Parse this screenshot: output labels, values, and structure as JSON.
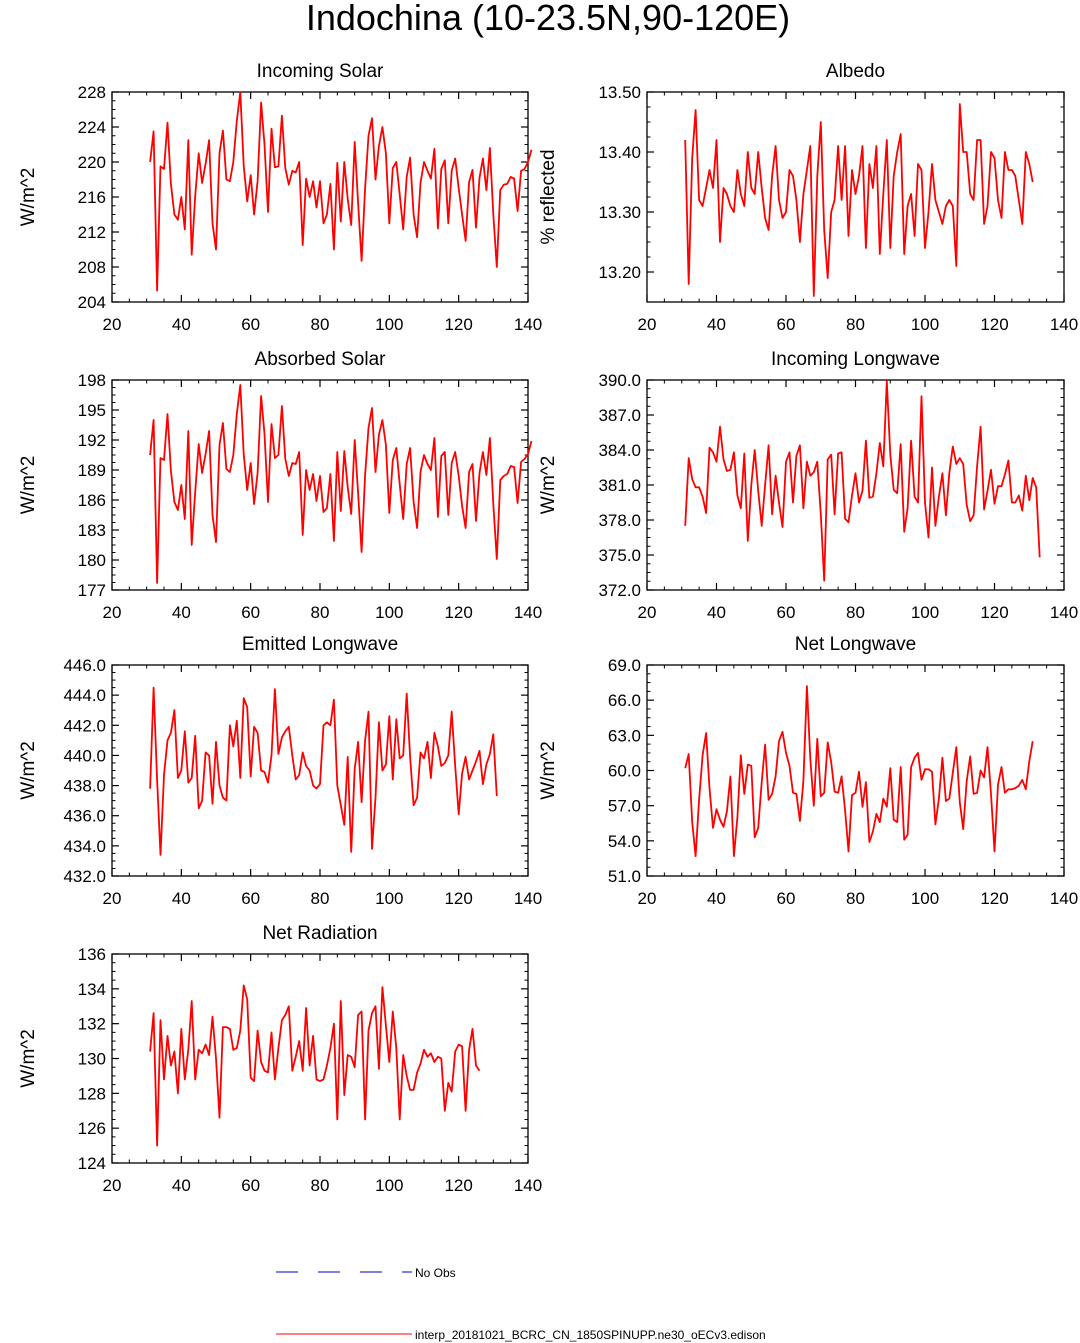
{
  "figure": {
    "title": "Indochina (10-23.5N,90-120E)",
    "legend": [
      {
        "label": "No Obs",
        "color": "#0000cc",
        "dashed": true
      },
      {
        "label": "interp_20181021_BCRC_CN_1850SPINUPP.ne30_oECv3.edison",
        "color": "#ff0000",
        "dashed": false
      }
    ]
  },
  "chart_data": [
    {
      "type": "line",
      "title": "Incoming Solar",
      "ylabel": "W/m^2",
      "xlim": [
        20,
        140
      ],
      "ylim": [
        204,
        228
      ],
      "xticks": [
        20,
        40,
        60,
        80,
        100,
        120,
        140
      ],
      "yticks": [
        204,
        208,
        212,
        216,
        220,
        224,
        228
      ],
      "ytick_labels": [
        "204",
        "208",
        "212",
        "216",
        "220",
        "224",
        "228"
      ],
      "x_start": 31,
      "series": [
        {
          "name": "interp_20181021_BCRC_CN_1850SPINUPP.ne30_oECv3.edison",
          "color": "#ff0000",
          "values": [
            220.0,
            223.5,
            205.3,
            219.5,
            219.2,
            224.5,
            217.5,
            214.0,
            213.4,
            216.0,
            212.3,
            222.5,
            209.4,
            216.1,
            221.0,
            217.6,
            219.8,
            222.5,
            213.0,
            210.0,
            221.0,
            223.6,
            218.0,
            217.8,
            220.0,
            224.7,
            228.0,
            219.6,
            215.5,
            218.5,
            214.0,
            217.8,
            226.8,
            222.0,
            214.3,
            223.8,
            219.4,
            219.5,
            225.3,
            219.3,
            217.4,
            219.0,
            218.8,
            220.0,
            210.5,
            218.1,
            216.0,
            217.8,
            214.8,
            217.8,
            213.0,
            214.0,
            217.5,
            210.0,
            219.9,
            213.2,
            220.0,
            215.8,
            212.8,
            222.3,
            215.3,
            208.7,
            217.0,
            223.0,
            225.0,
            218.0,
            221.8,
            224.0,
            221.0,
            213.0,
            219.3,
            220.0,
            216.3,
            212.3,
            218.3,
            220.5,
            214.0,
            211.4,
            217.6,
            220.0,
            219.0,
            218.1,
            221.5,
            212.4,
            219.2,
            220.2,
            213.0,
            219.0,
            220.4,
            217.0,
            214.0,
            211.0,
            217.7,
            219.1,
            212.5,
            218.2,
            220.4,
            216.8,
            221.6,
            214.0,
            208.0,
            216.8,
            217.4,
            217.5,
            218.3,
            218.1,
            214.4,
            219.0,
            219.2,
            220.0,
            221.4
          ]
        }
      ]
    },
    {
      "type": "line",
      "title": "Albedo",
      "ylabel": "% reflected",
      "xlim": [
        20,
        140
      ],
      "ylim": [
        13.15,
        13.5
      ],
      "xticks": [
        20,
        40,
        60,
        80,
        100,
        120,
        140
      ],
      "yticks": [
        13.2,
        13.3,
        13.4,
        13.5
      ],
      "ytick_labels": [
        "13.20",
        "13.30",
        "13.40",
        "13.50"
      ],
      "x_start": 31,
      "series": [
        {
          "name": "interp_20181021_BCRC_CN_1850SPINUPP.ne30_oECv3.edison",
          "color": "#ff0000",
          "values": [
            13.42,
            13.18,
            13.39,
            13.47,
            13.32,
            13.31,
            13.34,
            13.37,
            13.34,
            13.42,
            13.25,
            13.34,
            13.33,
            13.31,
            13.3,
            13.37,
            13.33,
            13.31,
            13.4,
            13.34,
            13.33,
            13.4,
            13.34,
            13.29,
            13.27,
            13.36,
            13.41,
            13.32,
            13.29,
            13.3,
            13.37,
            13.36,
            13.32,
            13.25,
            13.33,
            13.37,
            13.41,
            13.16,
            13.36,
            13.45,
            13.27,
            13.19,
            13.3,
            13.32,
            13.41,
            13.32,
            13.41,
            13.26,
            13.37,
            13.33,
            13.36,
            13.41,
            13.24,
            13.38,
            13.34,
            13.41,
            13.23,
            13.33,
            13.42,
            13.24,
            13.36,
            13.4,
            13.43,
            13.23,
            13.31,
            13.33,
            13.26,
            13.38,
            13.37,
            13.24,
            13.3,
            13.38,
            13.32,
            13.3,
            13.28,
            13.31,
            13.32,
            13.31,
            13.21,
            13.48,
            13.4,
            13.4,
            13.33,
            13.32,
            13.42,
            13.42,
            13.28,
            13.31,
            13.4,
            13.39,
            13.32,
            13.29,
            13.4,
            13.37,
            13.37,
            13.36,
            13.32,
            13.28,
            13.4,
            13.38,
            13.35
          ]
        }
      ]
    },
    {
      "type": "line",
      "title": "Absorbed Solar",
      "ylabel": "W/m^2",
      "xlim": [
        20,
        140
      ],
      "ylim": [
        177,
        198
      ],
      "xticks": [
        20,
        40,
        60,
        80,
        100,
        120,
        140
      ],
      "yticks": [
        177,
        180,
        183,
        186,
        189,
        192,
        195,
        198
      ],
      "ytick_labels": [
        "177",
        "180",
        "183",
        "186",
        "189",
        "192",
        "195",
        "198"
      ],
      "x_start": 31,
      "series": [
        {
          "name": "interp_20181021_BCRC_CN_1850SPINUPP.ne30_oECv3.edison",
          "color": "#ff0000",
          "values": [
            190.5,
            194.0,
            177.7,
            190.2,
            190.0,
            194.6,
            188.9,
            185.8,
            185.0,
            187.5,
            184.1,
            192.9,
            181.5,
            186.8,
            191.6,
            188.7,
            190.6,
            192.9,
            184.5,
            181.8,
            191.5,
            193.7,
            189.1,
            188.8,
            190.5,
            194.6,
            197.5,
            190.6,
            187.0,
            189.7,
            185.6,
            188.7,
            196.4,
            192.6,
            185.8,
            193.6,
            190.2,
            190.5,
            195.4,
            190.1,
            188.4,
            189.7,
            189.6,
            190.8,
            182.5,
            189.0,
            187.0,
            188.6,
            185.9,
            188.4,
            184.8,
            185.2,
            188.6,
            181.9,
            190.8,
            184.9,
            190.9,
            187.3,
            184.6,
            192.0,
            186.7,
            180.8,
            188.5,
            193.2,
            195.2,
            188.8,
            192.5,
            194.0,
            191.5,
            184.7,
            190.0,
            191.2,
            187.6,
            184.1,
            189.6,
            191.2,
            185.8,
            183.2,
            188.8,
            190.5,
            189.6,
            189.0,
            192.2,
            184.3,
            190.4,
            190.8,
            184.5,
            189.7,
            190.8,
            188.4,
            185.4,
            183.2,
            188.8,
            189.6,
            183.9,
            188.7,
            190.8,
            188.5,
            192.2,
            185.6,
            180.1,
            188.0,
            188.4,
            188.6,
            189.4,
            189.3,
            185.7,
            189.8,
            190.1,
            190.6,
            191.9
          ]
        }
      ]
    },
    {
      "type": "line",
      "title": "Incoming Longwave",
      "ylabel": "W/m^2",
      "xlim": [
        20,
        140
      ],
      "ylim": [
        372,
        390
      ],
      "xticks": [
        20,
        40,
        60,
        80,
        100,
        120,
        140
      ],
      "yticks": [
        372,
        375,
        378,
        381,
        384,
        387,
        390
      ],
      "ytick_labels": [
        "372.0",
        "375.0",
        "378.0",
        "381.0",
        "384.0",
        "387.0",
        "390.0"
      ],
      "x_start": 31,
      "series": [
        {
          "name": "interp_20181021_BCRC_CN_1850SPINUPP.ne30_oECv3.edison",
          "color": "#ff0000",
          "values": [
            377.5,
            383.3,
            381.5,
            380.8,
            380.8,
            380.0,
            378.6,
            384.2,
            383.8,
            383.0,
            386.0,
            383.2,
            382.2,
            382.3,
            383.8,
            380.1,
            379.0,
            383.7,
            376.2,
            381.0,
            384.0,
            380.5,
            377.5,
            381.0,
            384.4,
            378.5,
            381.8,
            379.5,
            377.4,
            383.0,
            383.8,
            379.5,
            383.5,
            384.4,
            379.0,
            383.0,
            381.8,
            382.1,
            383.0,
            378.5,
            372.8,
            383.2,
            383.6,
            378.5,
            383.7,
            383.8,
            378.1,
            377.8,
            380.1,
            382.0,
            379.5,
            380.5,
            384.8,
            379.9,
            380.0,
            382.0,
            384.6,
            382.6,
            389.9,
            383.6,
            380.6,
            380.3,
            384.5,
            377.0,
            379.0,
            384.8,
            380.0,
            379.5,
            388.6,
            379.5,
            376.5,
            382.5,
            377.5,
            380.0,
            382.0,
            378.4,
            382.0,
            384.3,
            382.8,
            383.3,
            382.8,
            379.3,
            377.9,
            378.4,
            382.6,
            386.0,
            378.9,
            380.5,
            382.3,
            379.4,
            380.9,
            380.9,
            381.9,
            383.1,
            379.5,
            379.5,
            380.1,
            378.8,
            381.8,
            379.7,
            381.6,
            380.8,
            374.8
          ]
        }
      ]
    },
    {
      "type": "line",
      "title": "Emitted Longwave",
      "ylabel": "W/m^2",
      "xlim": [
        20,
        140
      ],
      "ylim": [
        432,
        446
      ],
      "xticks": [
        20,
        40,
        60,
        80,
        100,
        120,
        140
      ],
      "yticks": [
        432,
        434,
        436,
        438,
        440,
        442,
        444,
        446
      ],
      "ytick_labels": [
        "432.0",
        "434.0",
        "436.0",
        "438.0",
        "440.0",
        "442.0",
        "444.0",
        "446.0"
      ],
      "x_start": 31,
      "series": [
        {
          "name": "interp_20181021_BCRC_CN_1850SPINUPP.ne30_oECv3.edison",
          "color": "#ff0000",
          "values": [
            437.8,
            444.5,
            438.4,
            433.4,
            438.7,
            441.0,
            441.5,
            443.0,
            438.5,
            439.0,
            441.6,
            438.2,
            438.5,
            441.3,
            436.5,
            437.0,
            440.2,
            440.0,
            436.8,
            440.9,
            438.0,
            437.2,
            437.0,
            442.0,
            440.6,
            442.3,
            438.5,
            443.8,
            443.2,
            438.6,
            441.9,
            441.5,
            439.0,
            438.9,
            438.2,
            440.0,
            444.4,
            440.1,
            441.2,
            441.6,
            441.9,
            440.0,
            438.4,
            438.7,
            440.2,
            439.3,
            439.0,
            438.0,
            437.8,
            438.1,
            442.0,
            442.2,
            442.0,
            443.7,
            438.0,
            436.7,
            435.4,
            439.9,
            433.6,
            439.1,
            440.9,
            436.9,
            441.0,
            442.9,
            433.8,
            437.2,
            442.2,
            439.0,
            439.4,
            442.6,
            438.4,
            442.4,
            439.8,
            440.0,
            444.1,
            439.9,
            436.7,
            437.2,
            440.2,
            439.8,
            440.9,
            438.5,
            441.5,
            440.6,
            439.3,
            439.5,
            440.0,
            442.9,
            439.3,
            436.1,
            438.8,
            439.9,
            438.4,
            439.0,
            439.6,
            440.3,
            438.1,
            439.4,
            440.1,
            441.4,
            437.3
          ]
        }
      ]
    },
    {
      "type": "line",
      "title": "Net Longwave",
      "ylabel": "W/m^2",
      "xlim": [
        20,
        140
      ],
      "ylim": [
        51,
        69
      ],
      "xticks": [
        20,
        40,
        60,
        80,
        100,
        120,
        140
      ],
      "yticks": [
        51,
        54,
        57,
        60,
        63,
        66,
        69
      ],
      "ytick_labels": [
        "51.0",
        "54.0",
        "57.0",
        "60.0",
        "63.0",
        "66.0",
        "69.0"
      ],
      "x_start": 31,
      "series": [
        {
          "name": "interp_20181021_BCRC_CN_1850SPINUPP.ne30_oECv3.edison",
          "color": "#ff0000",
          "values": [
            60.2,
            61.4,
            55.6,
            52.7,
            57.5,
            61.3,
            63.2,
            58.5,
            55.1,
            56.7,
            55.8,
            55.2,
            56.5,
            59.5,
            52.7,
            56.0,
            61.3,
            58.0,
            60.5,
            60.4,
            54.3,
            55.1,
            59.0,
            62.2,
            57.5,
            58.0,
            59.5,
            62.5,
            63.3,
            61.5,
            60.4,
            58.1,
            58.0,
            55.7,
            59.1,
            67.2,
            61.0,
            57.0,
            62.7,
            57.8,
            58.1,
            62.4,
            60.7,
            58.2,
            58.1,
            59.5,
            56.6,
            53.1,
            57.9,
            58.1,
            59.9,
            56.9,
            59.0,
            53.9,
            54.8,
            56.3,
            55.6,
            57.6,
            56.9,
            60.2,
            55.8,
            55.6,
            60.3,
            54.1,
            54.5,
            60.3,
            61.1,
            61.5,
            59.2,
            60.1,
            60.1,
            59.9,
            55.4,
            57.6,
            61.1,
            57.4,
            57.6,
            59.8,
            62.0,
            57.3,
            55.0,
            59.1,
            61.2,
            58.0,
            58.1,
            60.0,
            59.4,
            62.0,
            58.0,
            53.1,
            58.8,
            60.3,
            58.1,
            58.4,
            58.4,
            58.5,
            58.7,
            59.2,
            58.4,
            60.8,
            62.5
          ]
        }
      ]
    },
    {
      "type": "line",
      "title": "Net Radiation",
      "ylabel": "W/m^2",
      "xlim": [
        20,
        140
      ],
      "ylim": [
        124,
        136
      ],
      "xticks": [
        20,
        40,
        60,
        80,
        100,
        120,
        140
      ],
      "yticks": [
        124,
        126,
        128,
        130,
        132,
        134,
        136
      ],
      "ytick_labels": [
        "124",
        "126",
        "128",
        "130",
        "132",
        "134",
        "136"
      ],
      "x_start": 31,
      "series": [
        {
          "name": "interp_20181021_BCRC_CN_1850SPINUPP.ne30_oECv3.edison",
          "color": "#ff0000",
          "values": [
            130.4,
            132.6,
            125.0,
            132.2,
            128.8,
            131.3,
            129.6,
            130.4,
            128.0,
            131.7,
            128.8,
            130.5,
            133.3,
            128.8,
            130.5,
            130.3,
            130.8,
            130.2,
            132.4,
            130.0,
            126.6,
            131.8,
            131.8,
            131.7,
            130.5,
            130.6,
            131.6,
            134.2,
            133.4,
            128.9,
            128.7,
            131.6,
            129.8,
            129.3,
            129.2,
            131.5,
            128.8,
            130.6,
            132.2,
            132.5,
            133.0,
            129.3,
            130.1,
            131.0,
            129.3,
            132.9,
            129.6,
            131.3,
            128.8,
            128.7,
            128.8,
            129.6,
            130.6,
            132.0,
            126.5,
            133.3,
            127.9,
            130.2,
            130.1,
            129.5,
            132.5,
            132.7,
            126.5,
            131.6,
            132.6,
            133.0,
            129.4,
            134.1,
            131.9,
            129.8,
            132.7,
            130.6,
            126.5,
            130.2,
            129.0,
            128.2,
            128.2,
            129.2,
            129.7,
            130.5,
            130.1,
            130.3,
            129.8,
            130.1,
            130.0,
            127.0,
            128.6,
            128.1,
            130.4,
            130.8,
            130.7,
            127.0,
            130.5,
            131.7,
            129.6,
            129.3
          ]
        }
      ]
    }
  ]
}
